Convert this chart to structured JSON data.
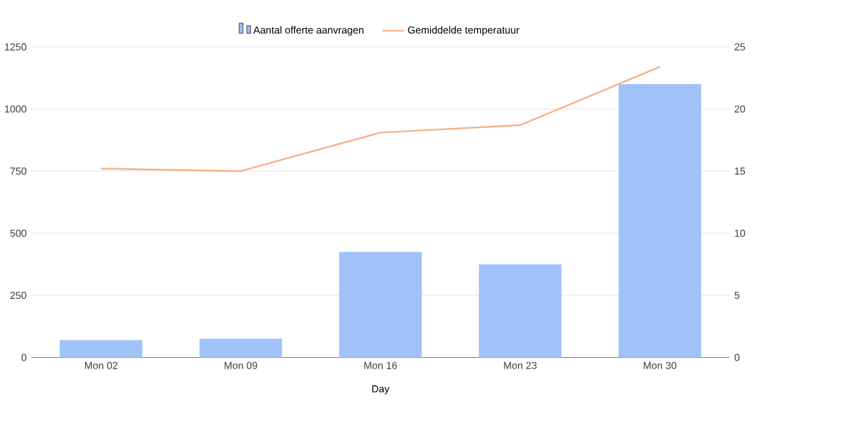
{
  "chart_data": {
    "type": "bar",
    "xlabel": "Day",
    "categories": [
      "Mon 02",
      "Mon 09",
      "Mon 16",
      "Mon 23",
      "Mon 30"
    ],
    "series": [
      {
        "name": "Aantal offerte aanvragen",
        "color": "#9fc3f9",
        "values": [
          70,
          75,
          425,
          375,
          1100
        ]
      },
      {
        "name": "Gemiddelde temperatuur",
        "type": "line",
        "axis": "y2",
        "color": "#f4b183",
        "values": [
          15.2,
          15.0,
          18.1,
          18.7,
          23.4
        ]
      }
    ],
    "ylim": [
      0,
      1250
    ],
    "yticks": [
      0,
      250,
      500,
      750,
      1000,
      1250
    ],
    "y2lim": [
      0,
      25
    ],
    "y2ticks": [
      0,
      5,
      10,
      15,
      20,
      25
    ],
    "grid": "y",
    "legend": "top",
    "marker": "none",
    "line_style": "solid"
  }
}
